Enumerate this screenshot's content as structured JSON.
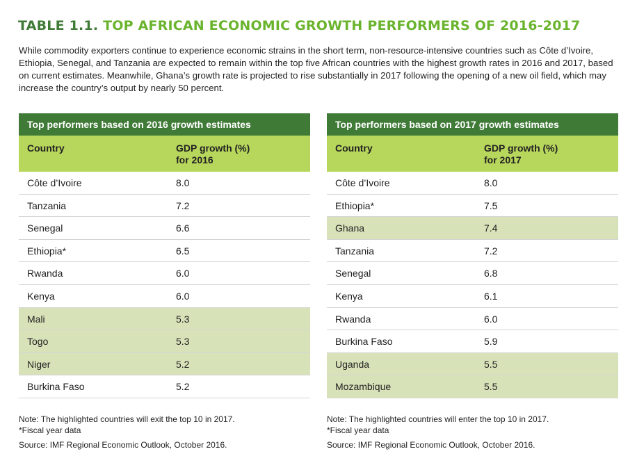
{
  "title": {
    "number": "TABLE 1.1.",
    "text": "TOP AFRICAN ECONOMIC GROWTH PERFORMERS OF 2016-2017"
  },
  "intro": "While commodity exporters continue to experience economic strains in the short term, non-resource-intensive countries such as Côte d’Ivoire, Ethiopia, Senegal, and Tanzania are expected to remain within the top five African countries with the highest growth rates in 2016 and 2017, based on current estimates. Meanwhile, Ghana’s growth rate is projected to rise substantially in 2017 following the opening of a new oil field, which may increase the country’s output by nearly 50 percent.",
  "colors": {
    "dark_green": "#3f7a36",
    "title_green": "#6ab42d",
    "header_green": "#b7d65c",
    "highlight": "#d8e2b9"
  },
  "tables": [
    {
      "caption": "Top performers based on 2016 growth estimates",
      "col_country": "Country",
      "col_gdp_line1": "GDP growth (%)",
      "col_gdp_line2": "for 2016",
      "rows": [
        {
          "country": "Côte d’Ivoire",
          "gdp": "8.0",
          "highlight": false
        },
        {
          "country": "Tanzania",
          "gdp": "7.2",
          "highlight": false
        },
        {
          "country": "Senegal",
          "gdp": "6.6",
          "highlight": false
        },
        {
          "country": "Ethiopia*",
          "gdp": "6.5",
          "highlight": false
        },
        {
          "country": "Rwanda",
          "gdp": "6.0",
          "highlight": false
        },
        {
          "country": "Kenya",
          "gdp": "6.0",
          "highlight": false
        },
        {
          "country": "Mali",
          "gdp": "5.3",
          "highlight": true
        },
        {
          "country": "Togo",
          "gdp": "5.3",
          "highlight": true
        },
        {
          "country": "Niger",
          "gdp": "5.2",
          "highlight": true
        },
        {
          "country": "Burkina Faso",
          "gdp": "5.2",
          "highlight": false
        }
      ],
      "note": "Note: The highlighted countries will exit the top 10 in 2017.",
      "fiscal": "*Fiscal year data",
      "source": "Source: IMF Regional Economic Outlook, October 2016."
    },
    {
      "caption": "Top performers based on 2017 growth estimates",
      "col_country": "Country",
      "col_gdp_line1": "GDP growth (%)",
      "col_gdp_line2": "for 2017",
      "rows": [
        {
          "country": "Côte d’Ivoire",
          "gdp": "8.0",
          "highlight": false
        },
        {
          "country": "Ethiopia*",
          "gdp": "7.5",
          "highlight": false
        },
        {
          "country": "Ghana",
          "gdp": "7.4",
          "highlight": true
        },
        {
          "country": "Tanzania",
          "gdp": "7.2",
          "highlight": false
        },
        {
          "country": "Senegal",
          "gdp": "6.8",
          "highlight": false
        },
        {
          "country": "Kenya",
          "gdp": "6.1",
          "highlight": false
        },
        {
          "country": "Rwanda",
          "gdp": "6.0",
          "highlight": false
        },
        {
          "country": "Burkina Faso",
          "gdp": "5.9",
          "highlight": false
        },
        {
          "country": "Uganda",
          "gdp": "5.5",
          "highlight": true
        },
        {
          "country": "Mozambique",
          "gdp": "5.5",
          "highlight": true
        }
      ],
      "note": "Note: The highlighted countries will enter the top 10 in 2017.",
      "fiscal": "*Fiscal year data",
      "source": "Source: IMF Regional Economic Outlook, October 2016."
    }
  ]
}
